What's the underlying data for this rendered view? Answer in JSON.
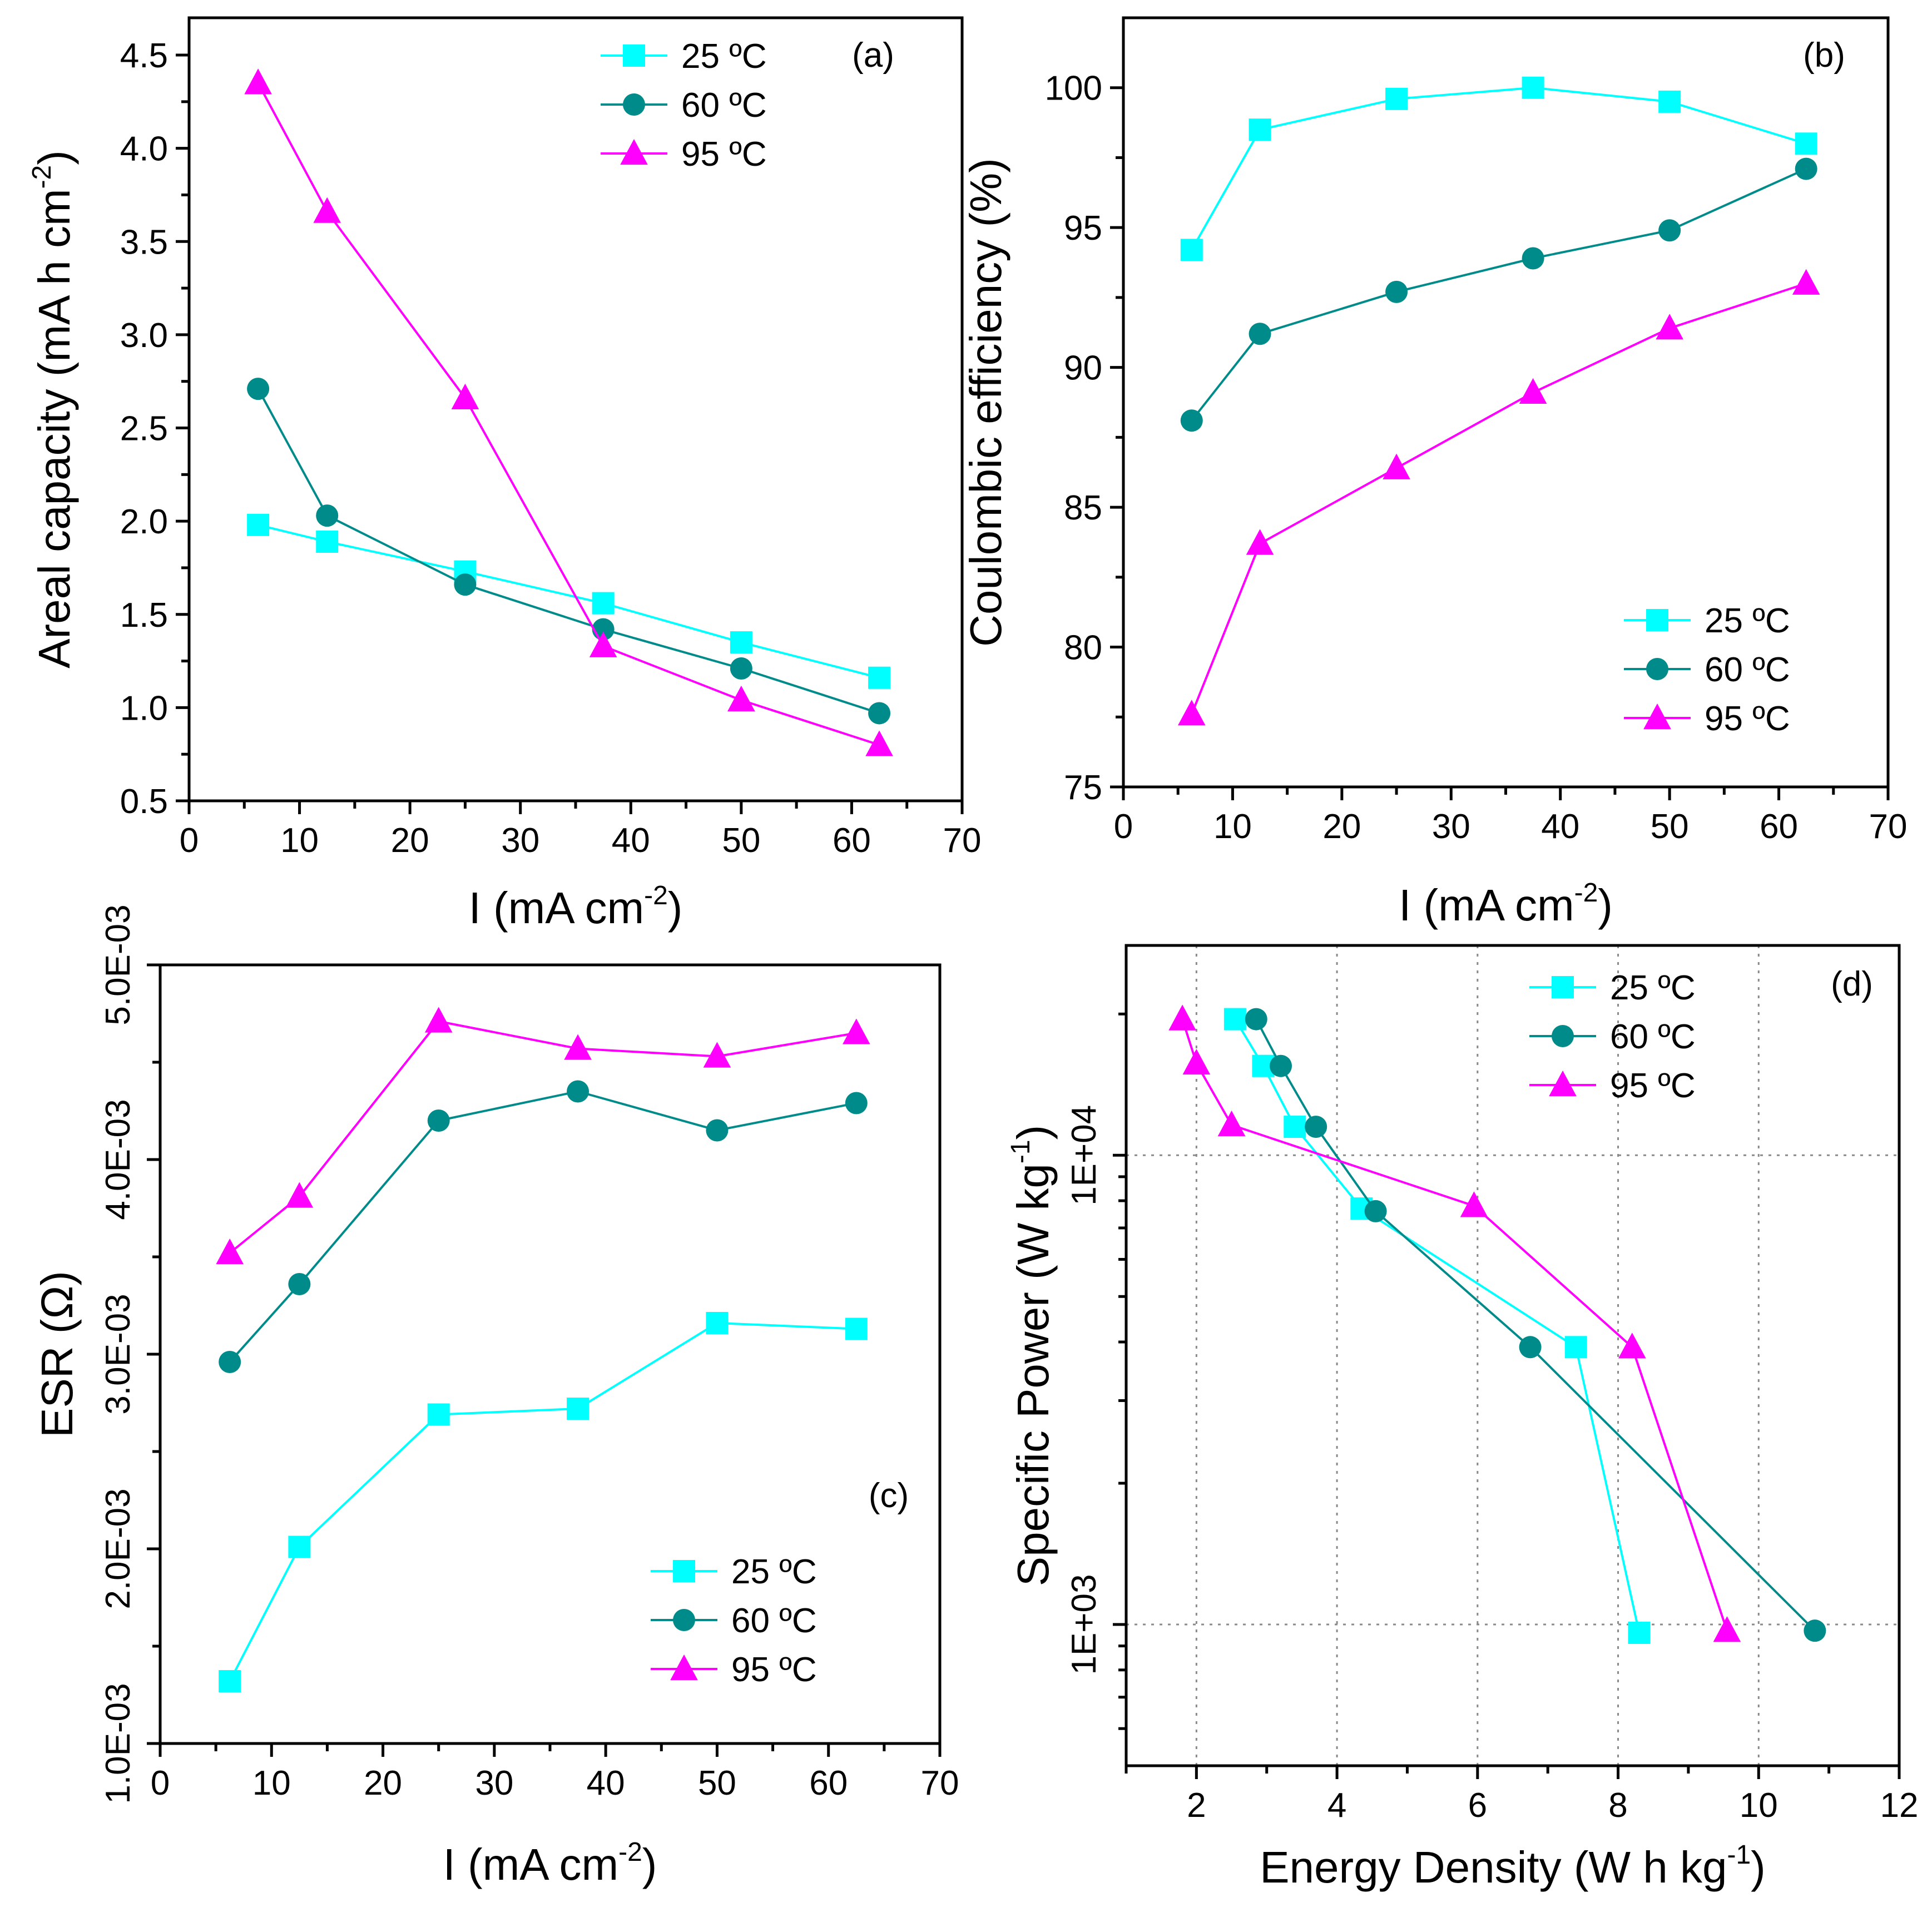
{
  "colors": {
    "25C": "#00FFFF",
    "60C": "#008B8B",
    "95C": "#FF00FF"
  },
  "legend_labels": [
    "25 ºC",
    "60 ºC",
    "95 ºC"
  ],
  "legend_labels_d": [
    "25  ºC",
    "60  ºC",
    "95  ºC"
  ],
  "chart_data": [
    {
      "panel": "(a)",
      "type": "line",
      "xlabel": "I (mA cm",
      "xlabel_sup": "-2",
      "xlabel_end": ")",
      "ylabel": "Areal capacity (mA h cm",
      "ylabel_sup": "-2",
      "ylabel_end": ")",
      "xlim": [
        0,
        70
      ],
      "ylim": [
        0.5,
        4.7
      ],
      "xticks": [
        "0",
        "10",
        "20",
        "30",
        "40",
        "50",
        "60",
        "70"
      ],
      "yticks": [
        "0.5",
        "1.0",
        "1.5",
        "2.0",
        "2.5",
        "3.0",
        "3.5",
        "4.0",
        "4.5"
      ],
      "legend_position": "top-right",
      "series": [
        {
          "name": "25 ºC",
          "marker": "square",
          "x": [
            6.25,
            12.5,
            25,
            37.5,
            50,
            62.5
          ],
          "y": [
            1.98,
            1.89,
            1.73,
            1.56,
            1.35,
            1.16
          ]
        },
        {
          "name": "60 ºC",
          "marker": "circle",
          "x": [
            6.25,
            12.5,
            25,
            37.5,
            50,
            62.5
          ],
          "y": [
            2.71,
            2.03,
            1.66,
            1.42,
            1.21,
            0.97
          ]
        },
        {
          "name": "95 ºC",
          "marker": "triangle",
          "x": [
            6.25,
            12.5,
            25,
            37.5,
            50,
            62.5
          ],
          "y": [
            4.35,
            3.66,
            2.66,
            1.33,
            1.04,
            0.8
          ]
        }
      ]
    },
    {
      "panel": "(b)",
      "type": "line",
      "xlabel": "I (mA cm",
      "xlabel_sup": "-2",
      "xlabel_end": ")",
      "ylabel": "Coulombic efficiency (%)",
      "xlim": [
        0,
        70
      ],
      "ylim": [
        75,
        102.5
      ],
      "xticks": [
        "0",
        "10",
        "20",
        "30",
        "40",
        "50",
        "60",
        "70"
      ],
      "yticks": [
        "75",
        "80",
        "85",
        "90",
        "95",
        "100"
      ],
      "legend_position": "bottom-right",
      "series": [
        {
          "name": "25 ºC",
          "marker": "square",
          "x": [
            6.25,
            12.5,
            25,
            37.5,
            50,
            62.5
          ],
          "y": [
            94.2,
            98.5,
            99.6,
            100.0,
            99.5,
            98.0
          ]
        },
        {
          "name": "60 ºC",
          "marker": "circle",
          "x": [
            6.25,
            12.5,
            25,
            37.5,
            50,
            62.5
          ],
          "y": [
            88.1,
            91.2,
            92.7,
            93.9,
            94.9,
            97.1
          ]
        },
        {
          "name": "95 ºC",
          "marker": "triangle",
          "x": [
            6.25,
            12.5,
            25,
            37.5,
            50,
            62.5
          ],
          "y": [
            77.6,
            83.7,
            86.4,
            89.1,
            91.4,
            93.0
          ]
        }
      ]
    },
    {
      "panel": "(c)",
      "type": "line",
      "xlabel": "I (mA cm",
      "xlabel_sup": "-2",
      "xlabel_end": ")",
      "ylabel": "ESR (Ω)",
      "xlim": [
        0,
        70
      ],
      "ylim": [
        0.001,
        0.005
      ],
      "xticks": [
        "0",
        "10",
        "20",
        "30",
        "40",
        "50",
        "60",
        "70"
      ],
      "yticks": [
        "1.0E-03",
        "2.0E-03",
        "3.0E-03",
        "4.0E-03",
        "5.0E-03"
      ],
      "legend_position": "bottom-right",
      "series": [
        {
          "name": "25 ºC",
          "marker": "square",
          "x": [
            6.25,
            12.5,
            25,
            37.5,
            50,
            62.5
          ],
          "y": [
            0.00132,
            0.00201,
            0.00269,
            0.00272,
            0.00316,
            0.00313
          ]
        },
        {
          "name": "60 ºC",
          "marker": "circle",
          "x": [
            6.25,
            12.5,
            25,
            37.5,
            50,
            62.5
          ],
          "y": [
            0.00296,
            0.00336,
            0.0042,
            0.00435,
            0.00415,
            0.00429
          ]
        },
        {
          "name": "95 ºC",
          "marker": "triangle",
          "x": [
            6.25,
            12.5,
            25,
            37.5,
            50,
            62.5
          ],
          "y": [
            0.00352,
            0.00381,
            0.00471,
            0.00457,
            0.00453,
            0.00465
          ]
        }
      ]
    },
    {
      "panel": "(d)",
      "type": "line",
      "xlabel": "Energy Density (W h kg",
      "xlabel_sup": "-1",
      "xlabel_end": ")",
      "ylabel": "Specific Power (W kg",
      "ylabel_sup": "-1",
      "ylabel_end": ")",
      "xlim": [
        1,
        12
      ],
      "ylim": [
        500,
        28000
      ],
      "yscale": "log",
      "xticks": [
        "2",
        "4",
        "6",
        "8",
        "10",
        "12"
      ],
      "yticks": [
        "1E+03",
        "1E+04"
      ],
      "grid": true,
      "legend_position": "top-right",
      "series": [
        {
          "name": "25  ºC",
          "marker": "square",
          "x": [
            2.55,
            2.95,
            3.4,
            4.35,
            7.4,
            8.3
          ],
          "y": [
            19500,
            15500,
            11500,
            7700,
            3900,
            960
          ]
        },
        {
          "name": "60  ºC",
          "marker": "circle",
          "x": [
            2.85,
            3.2,
            3.7,
            4.55,
            6.75,
            10.8
          ],
          "y": [
            19500,
            15500,
            11500,
            7600,
            3900,
            970
          ]
        },
        {
          "name": "95  ºC",
          "marker": "triangle",
          "x": [
            1.8,
            2.0,
            2.5,
            5.95,
            8.2,
            9.55
          ],
          "y": [
            19500,
            15700,
            11600,
            7800,
            3900,
            970
          ]
        }
      ]
    }
  ]
}
